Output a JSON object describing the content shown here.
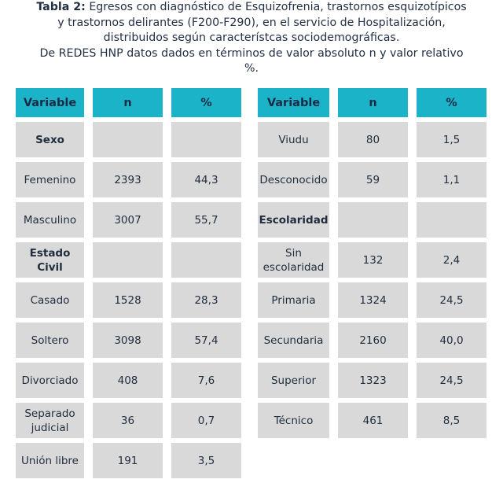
{
  "caption": {
    "label": "Tabla 2:",
    "line1": " Egresos con diagnóstico de Esquizofrenia, trastornos esquizotípicos",
    "line2": "y trastornos delirantes (F200-F290), en el servicio de Hospitalización,",
    "line3": "distribuidos según característcas sociodemográficas.",
    "line4": "De REDES HNP datos dados en términos de valor absoluto n y valor relativo",
    "line5": "%."
  },
  "headers": {
    "variable": "Variable",
    "n": "n",
    "pct": "%"
  },
  "left_rows": [
    {
      "variable": "Sexo",
      "n": "",
      "pct": "",
      "bold": true
    },
    {
      "variable": "Femenino",
      "n": "2393",
      "pct": "44,3"
    },
    {
      "variable": "Masculino",
      "n": "3007",
      "pct": "55,7"
    },
    {
      "variable": "Estado Civil",
      "n": "",
      "pct": "",
      "bold": true
    },
    {
      "variable": "Casado",
      "n": "1528",
      "pct": "28,3"
    },
    {
      "variable": "Soltero",
      "n": "3098",
      "pct": "57,4"
    },
    {
      "variable": "Divorciado",
      "n": "408",
      "pct": "7,6"
    },
    {
      "variable": "Separado judicial",
      "n": "36",
      "pct": "0,7"
    },
    {
      "variable": "Unión libre",
      "n": "191",
      "pct": "3,5"
    }
  ],
  "right_rows": [
    {
      "variable": "Viudu",
      "n": "80",
      "pct": "1,5"
    },
    {
      "variable": "Desconocido",
      "n": "59",
      "pct": "1,1"
    },
    {
      "variable": "Escolaridad",
      "n": "",
      "pct": "",
      "bold": true
    },
    {
      "variable": "Sin escolaridad",
      "n": "132",
      "pct": "2,4"
    },
    {
      "variable": "Primaria",
      "n": "1324",
      "pct": "24,5"
    },
    {
      "variable": "Secundaria",
      "n": "2160",
      "pct": "40,0"
    },
    {
      "variable": "Superior",
      "n": "1323",
      "pct": "24,5"
    },
    {
      "variable": "Técnico",
      "n": "461",
      "pct": "8,5"
    }
  ]
}
